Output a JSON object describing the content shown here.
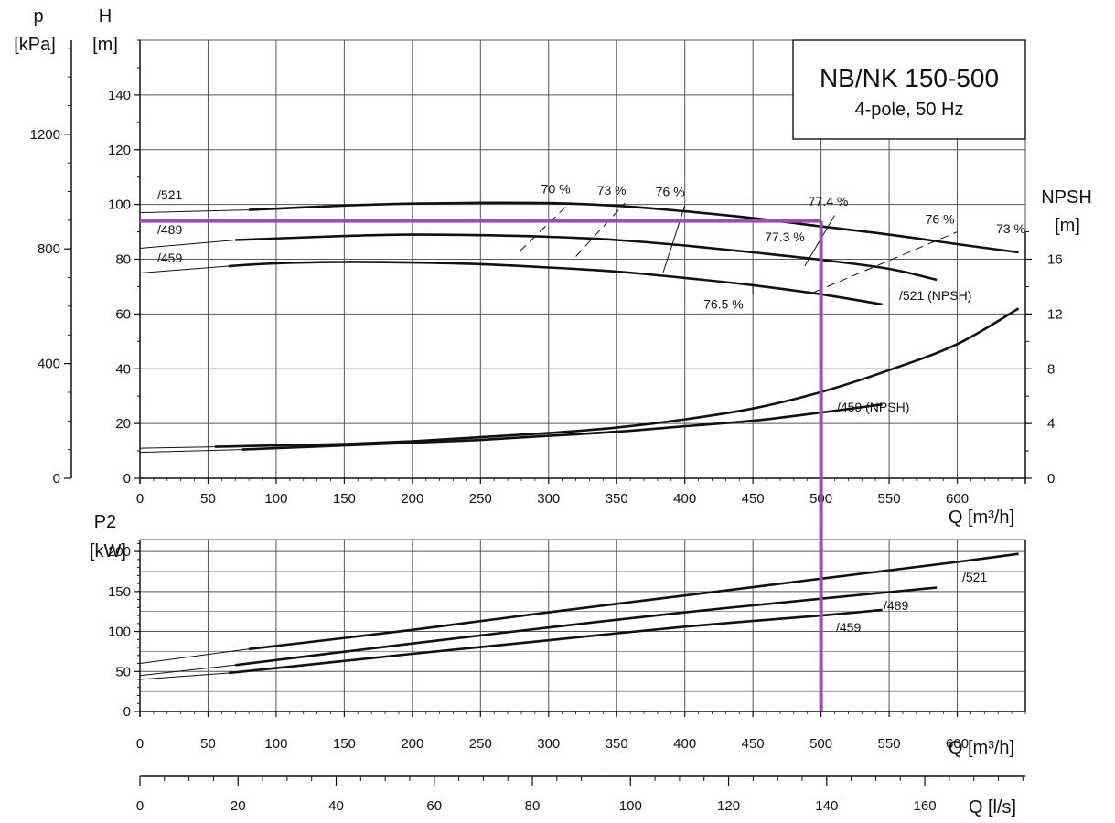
{
  "chart_data": {
    "type": "line",
    "title": "NB/NK 150-500",
    "subtitle": "4-pole, 50 Hz",
    "colors": {
      "curve": "#111111",
      "grid": "#555555",
      "marker": "#9b4fb0"
    },
    "head_panel": {
      "x_label": "Q [m³/h]",
      "y_left_label_line1": "H",
      "y_left_label_line2": "[m]",
      "p_label_line1": "p",
      "p_label_line2": "[kPa]",
      "npsh_label_line1": "NPSH",
      "npsh_label_line2": "[m]",
      "xlim": [
        0,
        650
      ],
      "ylim": [
        0,
        160
      ],
      "x_ticks": [
        0,
        50,
        100,
        150,
        200,
        250,
        300,
        350,
        400,
        450,
        500,
        550,
        600
      ],
      "h_ticks": [
        0,
        20,
        40,
        60,
        80,
        100,
        120,
        140
      ],
      "p_ticks": [
        0,
        400,
        800,
        1200
      ],
      "npsh_ticks": [
        0,
        4,
        8,
        12,
        16
      ],
      "series": [
        {
          "name": "/521",
          "x_thin": [
            0,
            80
          ],
          "y_thin": [
            97,
            98
          ],
          "x": [
            80,
            150,
            200,
            250,
            300,
            350,
            400,
            450,
            500,
            550,
            600,
            645
          ],
          "y": [
            98,
            99.6,
            100.3,
            100.6,
            100.5,
            99.5,
            97.5,
            95,
            92,
            89,
            85.5,
            82.5
          ]
        },
        {
          "name": "/489",
          "x_thin": [
            0,
            70
          ],
          "y_thin": [
            84,
            87
          ],
          "x": [
            70,
            150,
            200,
            250,
            300,
            350,
            400,
            450,
            500,
            550,
            585
          ],
          "y": [
            87,
            88.5,
            89,
            88.8,
            88.2,
            87,
            85,
            82.5,
            79.8,
            76.5,
            72.5
          ]
        },
        {
          "name": "/459",
          "x_thin": [
            0,
            65
          ],
          "y_thin": [
            75,
            77.5
          ],
          "x": [
            65,
            100,
            150,
            200,
            250,
            300,
            350,
            400,
            450,
            500,
            545
          ],
          "y": [
            77.5,
            78.5,
            79,
            78.8,
            78.2,
            77,
            75.5,
            73.2,
            70.5,
            67.2,
            63.5
          ]
        },
        {
          "name": "/521 (NPSH)",
          "x_thin": [
            0,
            55
          ],
          "y_thin": [
            2.2,
            2.3
          ],
          "x": [
            55,
            100,
            150,
            200,
            250,
            300,
            350,
            400,
            450,
            500,
            550,
            600,
            645
          ],
          "y": [
            2.3,
            2.4,
            2.5,
            2.7,
            3.0,
            3.3,
            3.7,
            4.3,
            5.1,
            6.3,
            7.9,
            9.8,
            12.4
          ]
        },
        {
          "name": "/459 (NPSH)",
          "x_thin": [
            0,
            75
          ],
          "y_thin": [
            1.9,
            2.1
          ],
          "x": [
            75,
            100,
            150,
            200,
            250,
            300,
            350,
            400,
            450,
            500,
            545
          ],
          "y": [
            2.1,
            2.2,
            2.4,
            2.6,
            2.8,
            3.1,
            3.4,
            3.8,
            4.2,
            4.8,
            5.4
          ]
        }
      ],
      "efficiency_labels": [
        {
          "text": "70 %",
          "x": 316,
          "h": 104
        },
        {
          "text": "73 %",
          "x": 357,
          "h": 103.5
        },
        {
          "text": "76 %",
          "x": 400,
          "h": 103
        },
        {
          "text": "77.4 %",
          "x": 520,
          "h": 99.5
        },
        {
          "text": "76 %",
          "x": 598,
          "h": 93
        },
        {
          "text": "73 %",
          "x": 650,
          "h": 89.5
        },
        {
          "text": "77.3 %",
          "x": 488,
          "h": 86.5
        },
        {
          "text": "76.5 %",
          "x": 443,
          "h": 62
        }
      ],
      "efficiency_iso": [
        {
          "x": [
            279,
            316
          ],
          "y": [
            83,
            100.8
          ],
          "dashed": true
        },
        {
          "x": [
            320,
            356
          ],
          "y": [
            81,
            100.5
          ],
          "dashed": true
        },
        {
          "x": [
            384,
            400
          ],
          "y": [
            75,
            99.6
          ],
          "dashed": false
        },
        {
          "x": [
            488,
            510
          ],
          "y": [
            77.5,
            96
          ],
          "dashed": false
        },
        {
          "x": [
            495,
            600
          ],
          "y": [
            68,
            90
          ],
          "dashed": true
        },
        {
          "x": [
            450,
            450
          ],
          "y": [
            70.5,
            67
          ],
          "dashed": false
        }
      ]
    },
    "power_panel": {
      "label_line1": "P2",
      "label_line2": "[kW]",
      "x_label": "Q [m³/h]",
      "xlim": [
        0,
        650
      ],
      "ylim": [
        0,
        215
      ],
      "x_ticks": [
        0,
        50,
        100,
        150,
        200,
        250,
        300,
        350,
        400,
        450,
        500,
        550,
        600
      ],
      "y_ticks": [
        0,
        50,
        100,
        150,
        200
      ],
      "series": [
        {
          "name": "/521",
          "x_thin": [
            0,
            80
          ],
          "y_thin": [
            60,
            78
          ],
          "x": [
            80,
            200,
            300,
            400,
            500,
            600,
            645
          ],
          "y": [
            78,
            102,
            124,
            145,
            166,
            187,
            197
          ]
        },
        {
          "name": "/489",
          "x_thin": [
            0,
            70
          ],
          "y_thin": [
            45,
            58
          ],
          "x": [
            70,
            200,
            300,
            400,
            500,
            585
          ],
          "y": [
            58,
            85,
            105,
            124,
            141,
            155
          ]
        },
        {
          "name": "/459",
          "x_thin": [
            0,
            65
          ],
          "y_thin": [
            40,
            48
          ],
          "x": [
            65,
            200,
            300,
            400,
            500,
            545
          ],
          "y": [
            48,
            72,
            89,
            106,
            120,
            127
          ]
        }
      ]
    },
    "flow_ls_axis": {
      "label": "Q [l/s]",
      "xlim": [
        0,
        180.5
      ],
      "ticks": [
        0,
        20,
        40,
        60,
        80,
        100,
        120,
        140,
        160
      ]
    },
    "duty_point": {
      "Q": 500,
      "H": 94
    }
  }
}
